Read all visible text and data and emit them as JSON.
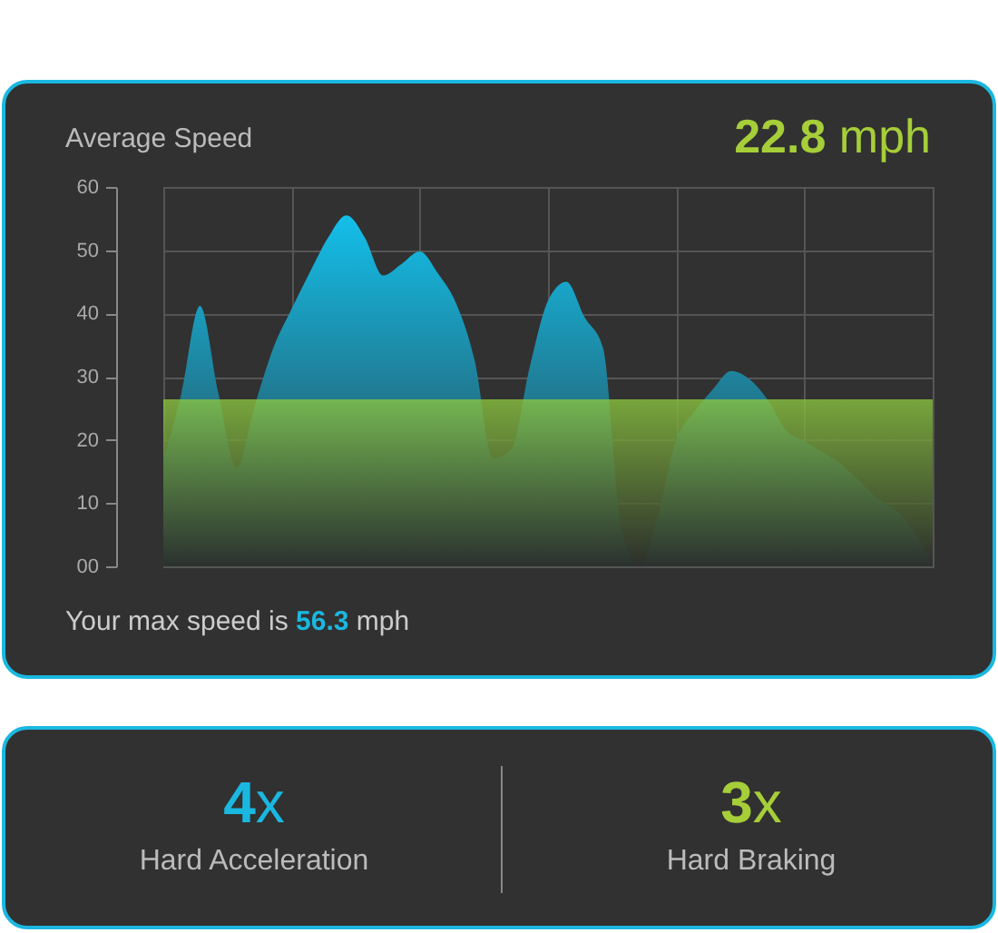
{
  "chart_data": [
    {
      "type": "area",
      "title": "Average Speed",
      "annotations": [
        "22.8 mph",
        "Your max speed is 56.3 mph"
      ],
      "categories": [
        null,
        null,
        null,
        null,
        null,
        null,
        null,
        null,
        null,
        null,
        null,
        null,
        null,
        null,
        null,
        null,
        null,
        null,
        null,
        null,
        null,
        null,
        null,
        null,
        null,
        null,
        null,
        null,
        null,
        null,
        null,
        null,
        null,
        null,
        null,
        null,
        null,
        null,
        null,
        null,
        null,
        null,
        null
      ],
      "series": [
        {
          "color": "#13bfea",
          "values": [
            16.8,
            27.5,
            41.2,
            27.5,
            15.5,
            25.5,
            34.5,
            40.7,
            46.5,
            52,
            55.5,
            52,
            46,
            47.8,
            49.8,
            46.3,
            41.5,
            32.5,
            17,
            18.5,
            31.5,
            42,
            45,
            39.4,
            34.6,
            6,
            0,
            8,
            20,
            24.5,
            28,
            30.9,
            29.6,
            26.3,
            21.5,
            19.8,
            18,
            16.2,
            13.5,
            10.7,
            8.9,
            5.5,
            0
          ]
        }
      ],
      "bands": [
        {
          "axis": "y",
          "from": 0,
          "to": 26.4,
          "color": "#8cc63f"
        }
      ],
      "ylim": [
        0,
        60
      ],
      "yticks": [
        {
          "value": 0,
          "label": "00"
        },
        10,
        20,
        30,
        40,
        50,
        60
      ],
      "grid": true,
      "tick_labels": "y"
    },
    {
      "type": "other",
      "annotations": [
        "4x",
        "Hard Acceleration",
        "3x",
        "Hard Braking"
      ]
    }
  ]
}
